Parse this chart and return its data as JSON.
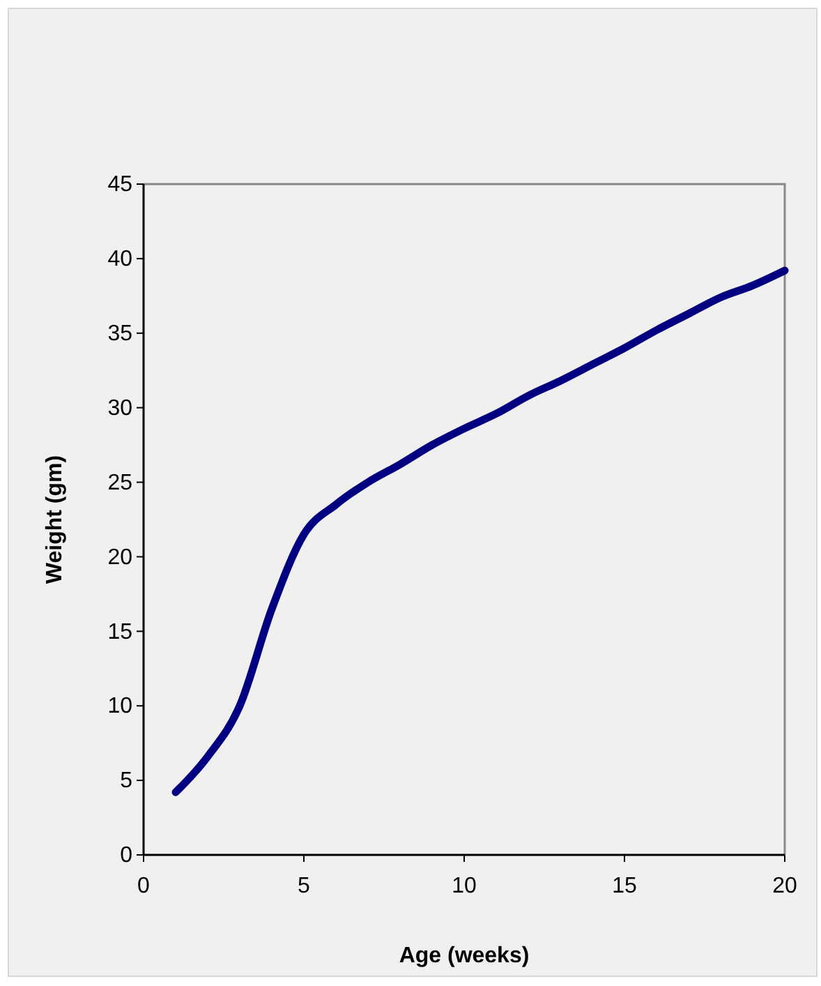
{
  "chart_data": {
    "type": "line",
    "xlabel": "Age (weeks)",
    "ylabel": "Weight (gm)",
    "x": [
      1,
      2,
      3,
      4,
      5,
      6,
      7,
      8,
      9,
      10,
      11,
      12,
      13,
      14,
      15,
      16,
      17,
      18,
      19,
      20
    ],
    "series": [
      {
        "color": "#000080",
        "values": [
          4.2,
          6.6,
          10,
          16.5,
          21.5,
          23.5,
          25,
          26.2,
          27.5,
          28.6,
          29.6,
          30.8,
          31.8,
          32.9,
          34,
          35.2,
          36.3,
          37.4,
          38.2,
          39.2
        ]
      }
    ],
    "xlim": [
      0,
      20
    ],
    "xticks": [
      0,
      5,
      10,
      15,
      20
    ],
    "ylim": [
      0,
      45
    ],
    "yticks": [
      0,
      5,
      10,
      15,
      20,
      25,
      30,
      35,
      40,
      45
    ],
    "grid": false,
    "legend": false,
    "marker": "none",
    "line_style": "solid"
  }
}
